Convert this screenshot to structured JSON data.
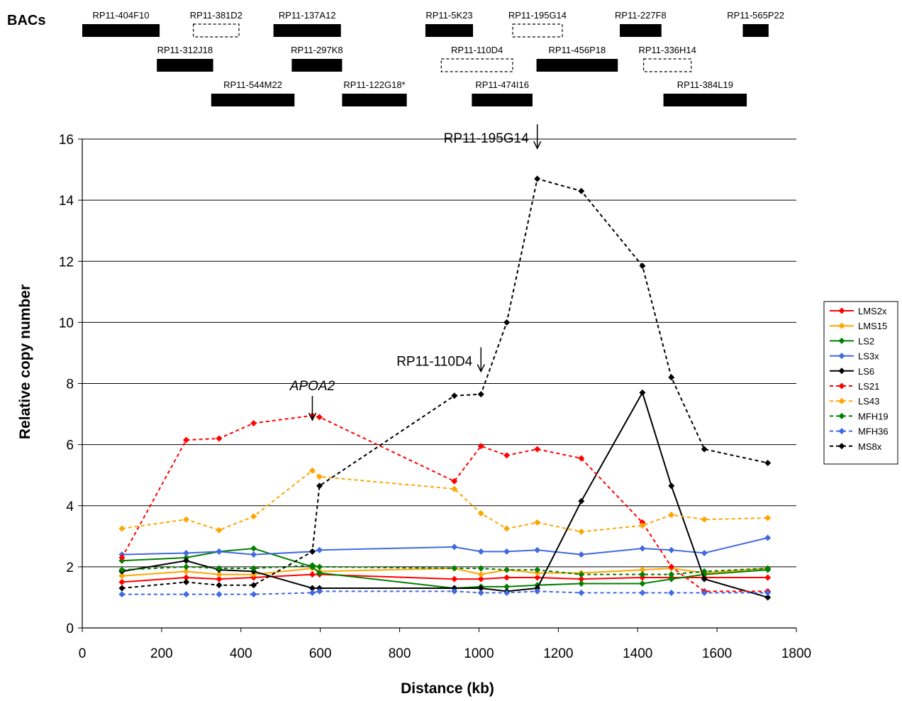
{
  "bac_track": {
    "title": "BACs",
    "bacs": [
      {
        "label": "RP11-404F10",
        "start": 0,
        "end": 195,
        "row": 1,
        "style": "solid"
      },
      {
        "label": "RP11-381D2",
        "start": 280,
        "end": 395,
        "row": 1,
        "style": "dashed"
      },
      {
        "label": "RP11-137A12",
        "start": 482,
        "end": 652,
        "row": 1,
        "style": "solid"
      },
      {
        "label": "RP11-5K23",
        "start": 865,
        "end": 985,
        "row": 1,
        "style": "dashed_false",
        "solid": true
      },
      {
        "label": "RP11-195G14",
        "start": 1085,
        "end": 1210,
        "row": 1,
        "style": "dashed"
      },
      {
        "label": "RP11-227F8",
        "start": 1355,
        "end": 1460,
        "row": 1,
        "style": "solid"
      },
      {
        "label": "RP11-565P22",
        "start": 1665,
        "end": 1730,
        "row": 1,
        "style": "solid"
      },
      {
        "label": "RP11-312J18",
        "start": 188,
        "end": 330,
        "row": 2,
        "style": "solid"
      },
      {
        "label": "RP11-297K8",
        "start": 528,
        "end": 655,
        "row": 2,
        "style": "solid"
      },
      {
        "label": "RP11-110D4",
        "start": 905,
        "end": 1085,
        "row": 2,
        "style": "dashed"
      },
      {
        "label": "RP11-456P18",
        "start": 1145,
        "end": 1350,
        "row": 2,
        "style": "solid"
      },
      {
        "label": "RP11-336H14",
        "start": 1415,
        "end": 1535,
        "row": 2,
        "style": "dashed"
      },
      {
        "label": "RP11-544M22",
        "start": 325,
        "end": 535,
        "row": 3,
        "style": "solid"
      },
      {
        "label": "RP11-122G18*",
        "start": 655,
        "end": 818,
        "row": 3,
        "style": "solid"
      },
      {
        "label": "RP11-474I16",
        "start": 982,
        "end": 1135,
        "row": 3,
        "style": "solid"
      },
      {
        "label": "RP11-384L19",
        "start": 1465,
        "end": 1675,
        "row": 3,
        "style": "solid"
      }
    ]
  },
  "chart_data": {
    "type": "line",
    "title": "",
    "xlabel": "Distance (kb)",
    "ylabel": "Relative copy number",
    "xlim": [
      0,
      1800
    ],
    "ylim": [
      0,
      16
    ],
    "xticks": [
      0,
      200,
      400,
      600,
      800,
      1000,
      1200,
      1400,
      1600,
      1800
    ],
    "yticks": [
      0,
      2,
      4,
      6,
      8,
      10,
      12,
      14,
      16
    ],
    "grid": "horizontal",
    "legend_position": "right",
    "x": [
      100,
      262,
      345,
      432,
      580,
      598,
      938,
      1005,
      1070,
      1147,
      1258,
      1412,
      1485,
      1568,
      1728
    ],
    "series": [
      {
        "name": "LMS2x",
        "color": "#ff0000",
        "dashed": false,
        "values": [
          1.5,
          1.65,
          1.6,
          1.65,
          1.75,
          1.75,
          1.6,
          1.6,
          1.65,
          1.65,
          1.6,
          1.65,
          1.65,
          1.65,
          1.65
        ]
      },
      {
        "name": "LMS15",
        "color": "#ffa500",
        "dashed": false,
        "values": [
          1.7,
          1.85,
          1.75,
          1.75,
          1.95,
          1.85,
          1.95,
          1.75,
          1.9,
          1.8,
          1.8,
          1.9,
          1.95,
          1.8,
          1.95
        ]
      },
      {
        "name": "LS2",
        "color": "#008000",
        "dashed": false,
        "values": [
          2.2,
          2.3,
          2.5,
          2.6,
          2.0,
          1.8,
          1.3,
          1.35,
          1.35,
          1.4,
          1.45,
          1.45,
          1.6,
          1.75,
          1.9
        ]
      },
      {
        "name": "LS3x",
        "color": "#4169e1",
        "dashed": false,
        "values": [
          2.4,
          2.45,
          2.5,
          2.4,
          2.5,
          2.55,
          2.65,
          2.5,
          2.5,
          2.55,
          2.4,
          2.6,
          2.55,
          2.45,
          2.95
        ]
      },
      {
        "name": "LS6",
        "color": "#000000",
        "dashed": false,
        "values": [
          1.85,
          2.2,
          1.9,
          1.85,
          1.3,
          1.3,
          1.3,
          1.3,
          1.2,
          1.3,
          4.15,
          7.7,
          4.65,
          1.6,
          1.0
        ]
      },
      {
        "name": "LS21",
        "color": "#ff0000",
        "dashed": true,
        "values": [
          2.3,
          6.15,
          6.2,
          6.7,
          6.95,
          6.9,
          4.8,
          5.95,
          5.65,
          5.85,
          5.55,
          3.45,
          2.0,
          1.2,
          1.2
        ]
      },
      {
        "name": "LS43",
        "color": "#ffa500",
        "dashed": true,
        "values": [
          3.25,
          3.55,
          3.2,
          3.65,
          5.15,
          4.95,
          4.55,
          3.75,
          3.25,
          3.45,
          3.15,
          3.35,
          3.7,
          3.55,
          3.6
        ]
      },
      {
        "name": "MFH19",
        "color": "#008000",
        "dashed": true,
        "values": [
          1.9,
          2.0,
          1.95,
          1.95,
          2.05,
          2.0,
          1.95,
          1.95,
          1.9,
          1.9,
          1.75,
          1.75,
          1.75,
          1.85,
          1.95
        ]
      },
      {
        "name": "MFH36",
        "color": "#4169e1",
        "dashed": true,
        "values": [
          1.1,
          1.1,
          1.1,
          1.1,
          1.15,
          1.2,
          1.2,
          1.15,
          1.15,
          1.2,
          1.15,
          1.15,
          1.15,
          1.15,
          1.15
        ]
      },
      {
        "name": "MS8x",
        "color": "#000000",
        "dashed": true,
        "values": [
          1.3,
          1.5,
          1.4,
          1.4,
          2.5,
          4.65,
          7.6,
          7.65,
          10.0,
          14.7,
          14.3,
          11.85,
          8.2,
          5.85,
          5.4
        ]
      }
    ],
    "annotations": [
      {
        "text": "RP11-195G14",
        "x": 1147,
        "y": 15.6,
        "italic": false
      },
      {
        "text": "RP11-110D4",
        "x": 1005,
        "y": 8.3,
        "italic": false
      },
      {
        "text": "APOA2",
        "x": 580,
        "y": 7.5,
        "italic": true
      }
    ]
  }
}
